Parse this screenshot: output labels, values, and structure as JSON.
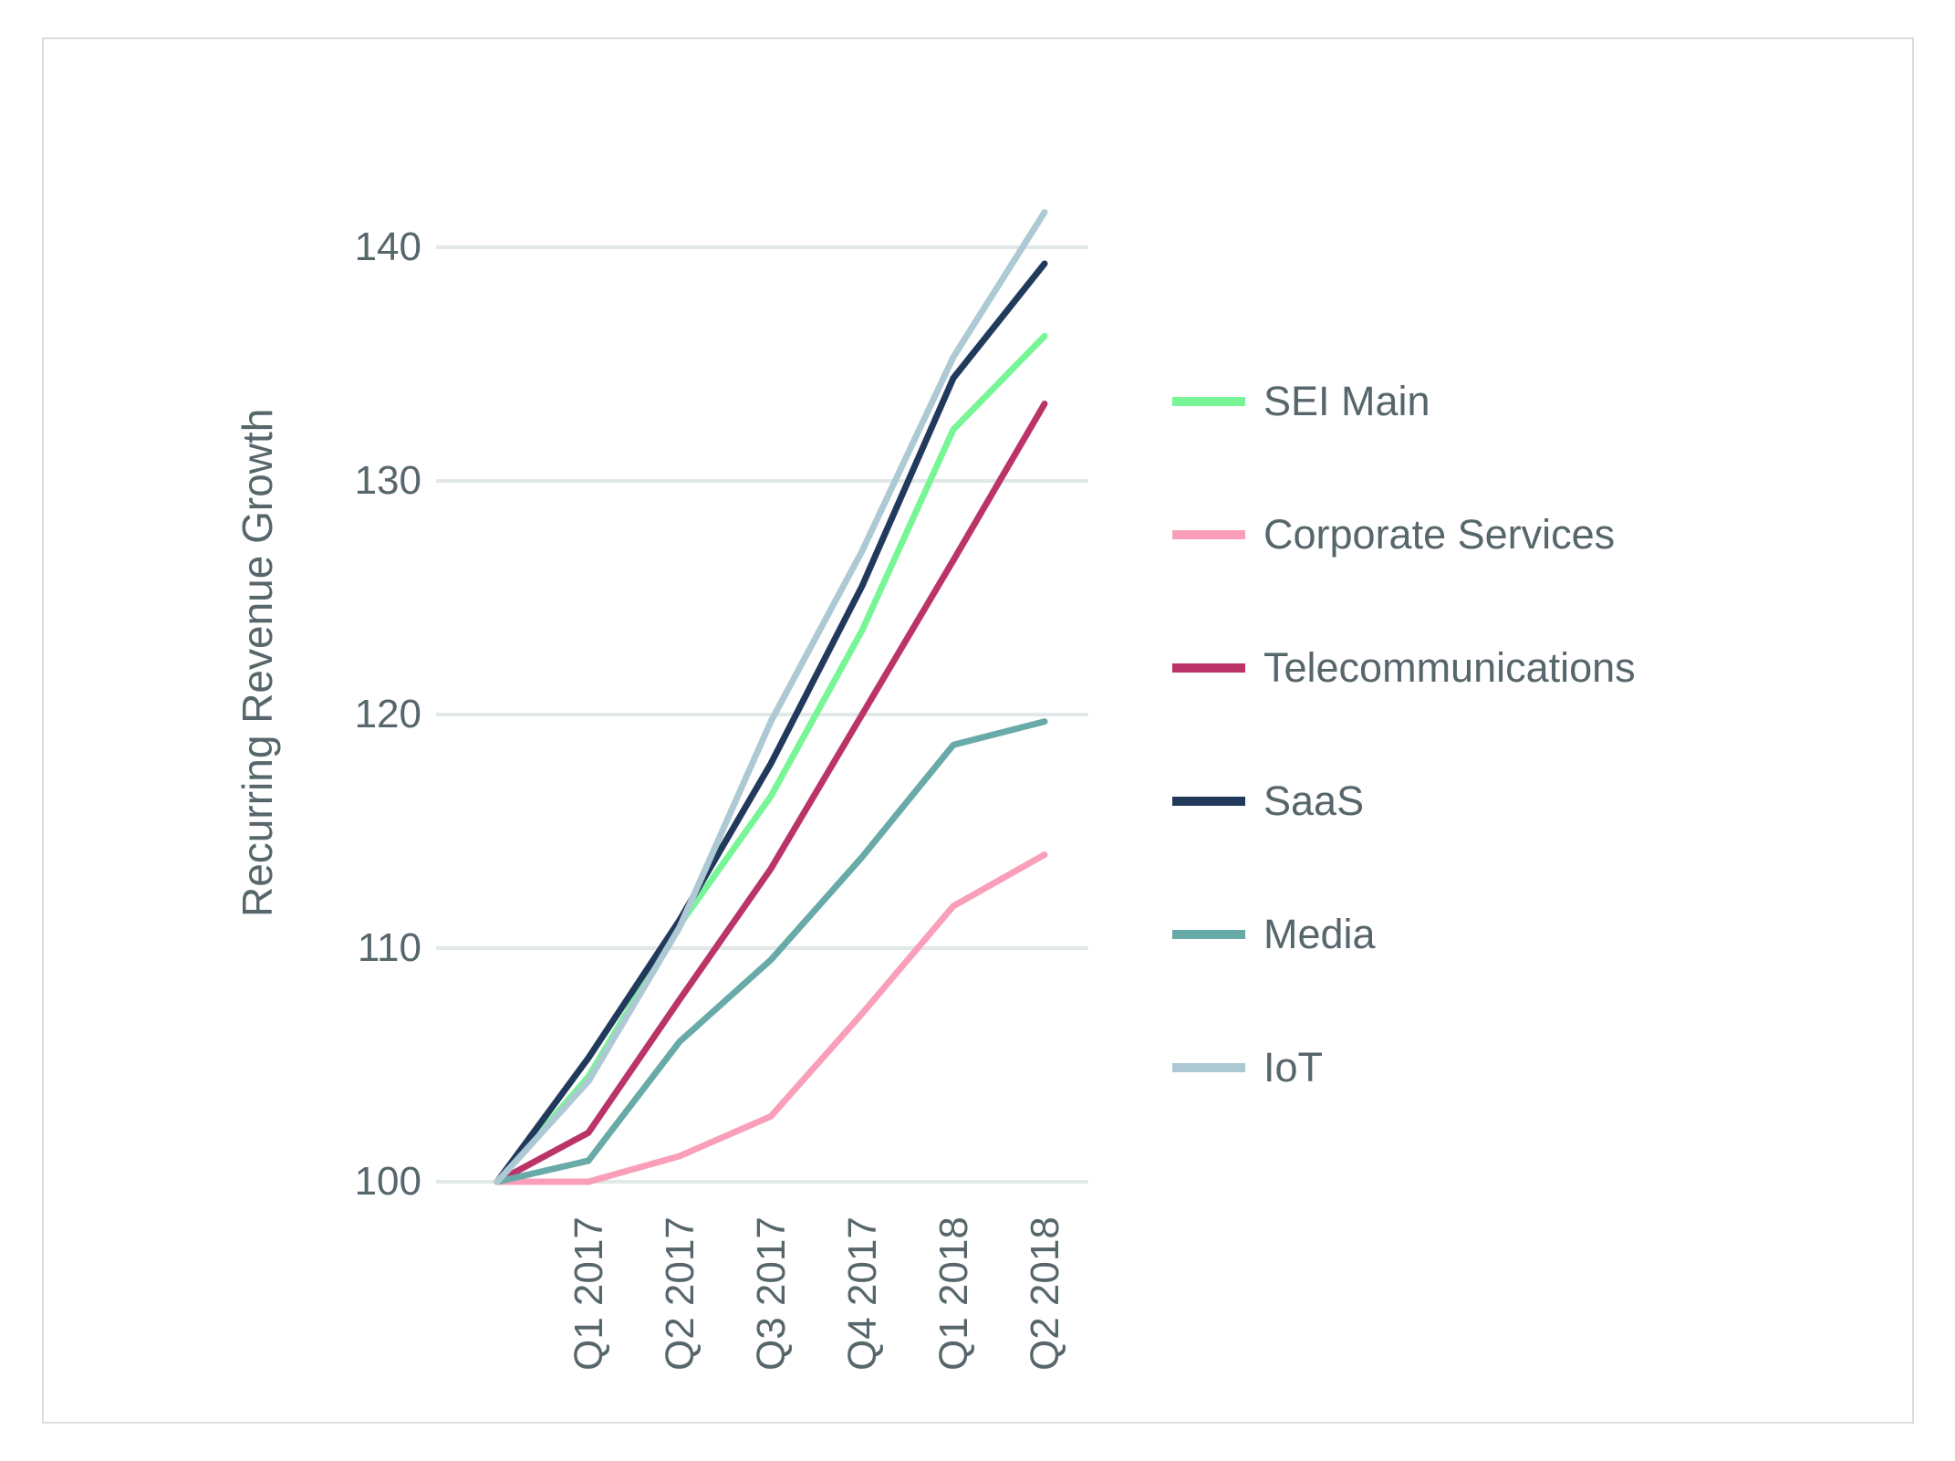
{
  "page": {
    "background": "#ffffff",
    "frame_border_color": "#d9dedd",
    "text_color": "#56666a",
    "gridline_color": "#e2e7e7"
  },
  "chart_data": {
    "type": "line",
    "title": "",
    "xlabel": "",
    "ylabel": "Recurring Revenue Growth",
    "categories": [
      "",
      "Q1 2017",
      "Q2 2017",
      "Q3 2017",
      "Q4 2017",
      "Q1 2018",
      "Q2 2018"
    ],
    "yticks": [
      140,
      130,
      120,
      110,
      100
    ],
    "ylim": [
      100,
      143
    ],
    "grid": "horizontal",
    "legend_position": "right",
    "series": [
      {
        "name": "SEI Main",
        "color": "#78f596",
        "values": [
          100,
          104.5,
          111.0,
          116.5,
          123.6,
          132.2,
          136.2
        ]
      },
      {
        "name": "Corporate Services",
        "color": "#f99fb9",
        "values": [
          100,
          100.0,
          101.1,
          102.8,
          107.2,
          111.8,
          114.0
        ]
      },
      {
        "name": "Telecommunications",
        "color": "#bb3467",
        "values": [
          100,
          102.1,
          107.8,
          113.4,
          120.0,
          126.6,
          133.3
        ]
      },
      {
        "name": "SaaS",
        "color": "#21395b",
        "values": [
          100,
          105.3,
          111.2,
          117.9,
          125.5,
          134.4,
          139.3
        ]
      },
      {
        "name": "Media",
        "color": "#68aaa7",
        "values": [
          100,
          100.9,
          106.0,
          109.5,
          113.9,
          118.7,
          119.7
        ]
      },
      {
        "name": "IoT",
        "color": "#adc9d4",
        "values": [
          100,
          104.3,
          110.9,
          119.7,
          127.0,
          135.3,
          141.5
        ]
      }
    ]
  }
}
